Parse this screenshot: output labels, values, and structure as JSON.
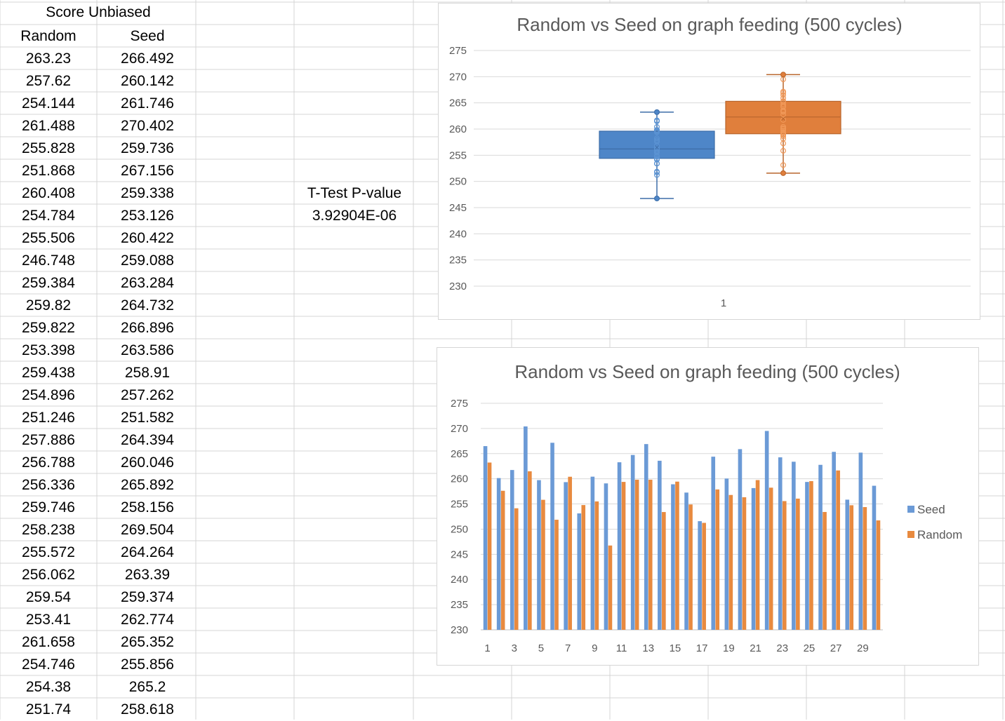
{
  "sheet": {
    "header": "Score Unbiased",
    "col_random": "Random",
    "col_seed": "Seed",
    "ttest_label": "T-Test P-value",
    "ttest_value": "3.92904E-06",
    "random_text": [
      "263.23",
      "257.62",
      "254.144",
      "261.488",
      "255.828",
      "251.868",
      "260.408",
      "254.784",
      "255.506",
      "246.748",
      "259.384",
      "259.82",
      "259.822",
      "253.398",
      "259.438",
      "254.896",
      "251.246",
      "257.886",
      "256.788",
      "256.336",
      "259.746",
      "258.238",
      "255.572",
      "256.062",
      "259.54",
      "253.41",
      "261.658",
      "254.746",
      "254.38",
      "251.74"
    ],
    "seed_text": [
      "266.492",
      "260.142",
      "261.746",
      "270.402",
      "259.736",
      "267.156",
      "259.338",
      "253.126",
      "260.422",
      "259.088",
      "263.284",
      "264.732",
      "266.896",
      "263.586",
      "258.91",
      "257.262",
      "251.582",
      "264.394",
      "260.046",
      "265.892",
      "258.156",
      "269.504",
      "264.264",
      "263.39",
      "259.374",
      "262.774",
      "265.352",
      "255.856",
      "265.2",
      "258.618"
    ]
  },
  "chart_data": [
    {
      "type": "box",
      "title": "Random vs Seed on graph feeding (500 cycles)",
      "category": "1",
      "ylim": [
        230,
        275
      ],
      "yticks": [
        230,
        235,
        240,
        245,
        250,
        255,
        260,
        265,
        270,
        275
      ],
      "grid": true,
      "series": [
        {
          "name": "Random",
          "color": "#4e86c8",
          "min": 246.748,
          "q1": 254.4,
          "median": 256.2,
          "q3": 259.6,
          "max": 263.23,
          "mean": 256.6
        },
        {
          "name": "Seed",
          "color": "#e07f3c",
          "min": 251.582,
          "q1": 259.1,
          "median": 262.3,
          "q3": 265.3,
          "max": 270.402,
          "mean": 262.1
        }
      ]
    },
    {
      "type": "bar",
      "title": "Random vs Seed on graph feeding (500 cycles)",
      "x": [
        1,
        2,
        3,
        4,
        5,
        6,
        7,
        8,
        9,
        10,
        11,
        12,
        13,
        14,
        15,
        16,
        17,
        18,
        19,
        20,
        21,
        22,
        23,
        24,
        25,
        26,
        27,
        28,
        29,
        30
      ],
      "xtick_labels": [
        "1",
        "3",
        "5",
        "7",
        "9",
        "11",
        "13",
        "15",
        "17",
        "19",
        "21",
        "23",
        "25",
        "27",
        "29"
      ],
      "ylim": [
        230,
        275
      ],
      "yticks": [
        230,
        235,
        240,
        245,
        250,
        255,
        260,
        265,
        270,
        275
      ],
      "legend_position": "right",
      "grid": true,
      "series": [
        {
          "name": "Seed",
          "color": "#6b9ad6",
          "values": [
            266.492,
            260.142,
            261.746,
            270.402,
            259.736,
            267.156,
            259.338,
            253.126,
            260.422,
            259.088,
            263.284,
            264.732,
            266.896,
            263.586,
            258.91,
            257.262,
            251.582,
            264.394,
            260.046,
            265.892,
            258.156,
            269.504,
            264.264,
            263.39,
            259.374,
            262.774,
            265.352,
            255.856,
            265.2,
            258.618
          ]
        },
        {
          "name": "Random",
          "color": "#e88a3f",
          "values": [
            263.23,
            257.62,
            254.144,
            261.488,
            255.828,
            251.868,
            260.408,
            254.784,
            255.506,
            246.748,
            259.384,
            259.82,
            259.822,
            253.398,
            259.438,
            254.896,
            251.246,
            257.886,
            256.788,
            256.336,
            259.746,
            258.238,
            255.572,
            256.062,
            259.54,
            253.41,
            261.658,
            254.746,
            254.38,
            251.74
          ]
        }
      ]
    }
  ]
}
